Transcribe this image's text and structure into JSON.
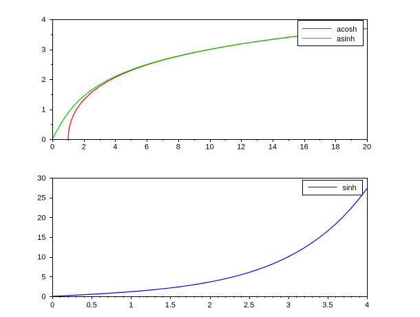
{
  "figure": {
    "background": "#ffffff"
  },
  "chart_data": [
    {
      "name": "inverse-hyperbolic-functions",
      "type": "line",
      "title": "",
      "xlabel": "",
      "ylabel": "",
      "xlim": [
        0,
        20
      ],
      "ylim": [
        0,
        4
      ],
      "grid": false,
      "legend_position": "upper-right",
      "xticks": {
        "major": [
          0,
          2,
          4,
          6,
          8,
          10,
          12,
          14,
          16,
          18,
          20
        ],
        "labels": [
          "0",
          "2",
          "4",
          "6",
          "8",
          "10",
          "12",
          "14",
          "16",
          "18",
          "20"
        ],
        "minor": [
          1,
          3,
          5,
          7,
          9,
          11,
          13,
          15,
          17,
          19
        ]
      },
      "yticks": {
        "major": [
          0,
          1,
          2,
          3,
          4
        ],
        "labels": [
          "0",
          "1",
          "2",
          "3",
          "4"
        ],
        "minor": [
          0.5,
          1.5,
          2.5,
          3.5
        ]
      },
      "series": [
        {
          "name": "acosh",
          "color": "#ff0000",
          "x": [
            1,
            1.05,
            1.1,
            1.2,
            1.3,
            1.4,
            1.5,
            1.6,
            1.8,
            2,
            2.5,
            3,
            3.5,
            4,
            4.5,
            5,
            5.5,
            6,
            6.5,
            7,
            7.5,
            8,
            8.5,
            9,
            9.5,
            10,
            11,
            12,
            13,
            14,
            15,
            16,
            17,
            18,
            19,
            20
          ],
          "y": [
            0,
            0.315,
            0.4436,
            0.6224,
            0.7564,
            0.867,
            0.9624,
            1.047,
            1.1929,
            1.317,
            1.5668,
            1.7627,
            1.9248,
            2.0634,
            2.1846,
            2.2924,
            2.3895,
            2.4779,
            2.5591,
            2.6339,
            2.7037,
            2.7687,
            2.8297,
            2.8873,
            2.9417,
            2.9932,
            3.089,
            3.1763,
            3.2566,
            3.3309,
            3.4001,
            3.4648,
            3.5255,
            3.5829,
            3.6373,
            3.6883
          ]
        },
        {
          "name": "asinh",
          "color": "#00cc00",
          "x": [
            0,
            0.1,
            0.2,
            0.3,
            0.4,
            0.5,
            0.6,
            0.7,
            0.8,
            0.9,
            1,
            1.2,
            1.4,
            1.6,
            1.8,
            2,
            2.5,
            3,
            3.5,
            4,
            4.5,
            5,
            5.5,
            6,
            6.5,
            7,
            7.5,
            8,
            8.5,
            9,
            9.5,
            10,
            11,
            12,
            13,
            14,
            15,
            16,
            17,
            18,
            19,
            20
          ],
          "y": [
            0,
            0.0998,
            0.1987,
            0.2957,
            0.39,
            0.4812,
            0.5688,
            0.6527,
            0.7327,
            0.8089,
            0.8814,
            1.016,
            1.138,
            1.249,
            1.3504,
            1.4436,
            1.6472,
            1.8184,
            1.9657,
            2.0947,
            2.2094,
            2.3124,
            2.4061,
            2.4918,
            2.5709,
            2.6441,
            2.7124,
            2.7765,
            2.8361,
            2.8934,
            2.9468,
            2.9982,
            3.0931,
            3.1798,
            3.2595,
            3.3334,
            3.4023,
            3.4667,
            3.5272,
            3.5845,
            3.6386,
            3.6895
          ]
        }
      ]
    },
    {
      "name": "hyperbolic-sine",
      "type": "line",
      "title": "",
      "xlabel": "",
      "ylabel": "",
      "xlim": [
        0,
        4
      ],
      "ylim": [
        0,
        30
      ],
      "grid": false,
      "legend_position": "upper-right",
      "xticks": {
        "major": [
          0,
          0.5,
          1,
          1.5,
          2,
          2.5,
          3,
          3.5,
          4
        ],
        "labels": [
          "0",
          "0.5",
          "1",
          "1.5",
          "2",
          "2.5",
          "3",
          "3.5",
          "4"
        ],
        "minor": [
          0.1,
          0.2,
          0.3,
          0.4,
          0.6,
          0.7,
          0.8,
          0.9,
          1.1,
          1.2,
          1.3,
          1.4,
          1.6,
          1.7,
          1.8,
          1.9,
          2.1,
          2.2,
          2.3,
          2.4,
          2.6,
          2.7,
          2.8,
          2.9,
          3.1,
          3.2,
          3.3,
          3.4,
          3.6,
          3.7,
          3.8,
          3.9
        ]
      },
      "yticks": {
        "major": [
          0,
          5,
          10,
          15,
          20,
          25,
          30
        ],
        "labels": [
          "0",
          "5",
          "10",
          "15",
          "20",
          "25",
          "30"
        ],
        "minor": []
      },
      "series": [
        {
          "name": "sinh",
          "color": "#0000ff",
          "x": [
            0,
            0.1,
            0.2,
            0.3,
            0.4,
            0.5,
            0.6,
            0.7,
            0.8,
            0.9,
            1,
            1.1,
            1.2,
            1.3,
            1.4,
            1.5,
            1.6,
            1.7,
            1.8,
            1.9,
            2,
            2.1,
            2.2,
            2.3,
            2.4,
            2.5,
            2.6,
            2.7,
            2.8,
            2.9,
            3,
            3.1,
            3.2,
            3.3,
            3.4,
            3.5,
            3.6,
            3.7,
            3.8,
            3.9,
            4
          ],
          "y": [
            0,
            0.1002,
            0.2013,
            0.3045,
            0.4108,
            0.5211,
            0.6367,
            0.7586,
            0.8881,
            1.0265,
            1.1752,
            1.3356,
            1.5095,
            1.6984,
            1.9043,
            2.1293,
            2.3756,
            2.6456,
            2.9422,
            3.2682,
            3.6269,
            4.0219,
            4.4571,
            4.937,
            5.4662,
            6.0502,
            6.6947,
            7.4063,
            8.1919,
            9.0596,
            10.0179,
            11.0765,
            12.2459,
            13.5379,
            14.9654,
            16.5426,
            18.2855,
            20.2113,
            22.3394,
            24.6911,
            27.2899
          ]
        }
      ]
    }
  ]
}
